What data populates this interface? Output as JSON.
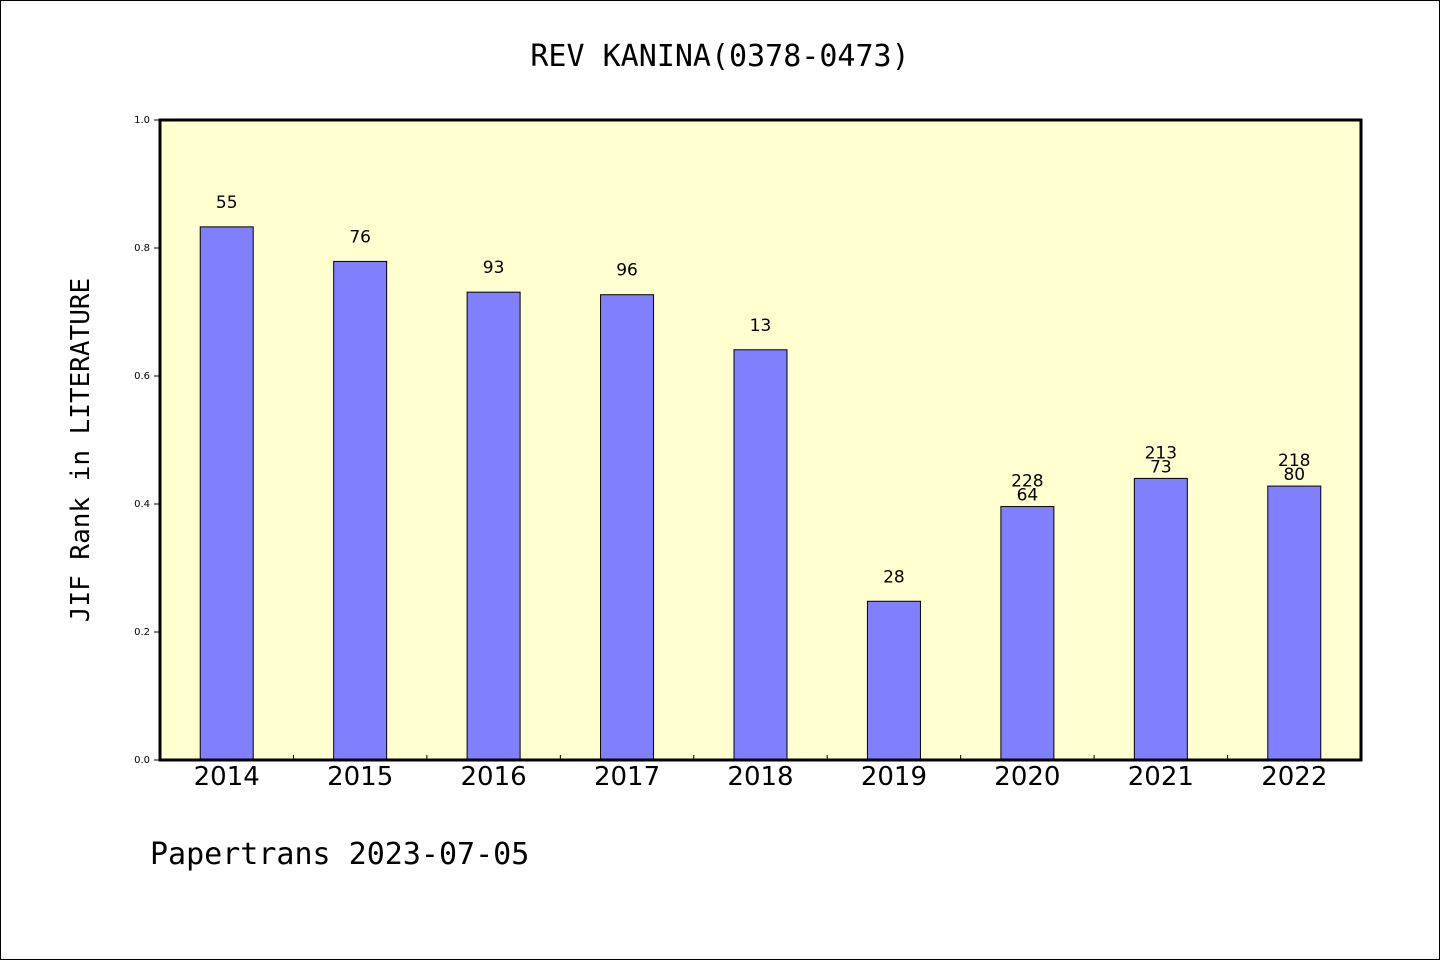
{
  "chart_data": {
    "type": "bar",
    "title": "REV KANINA(0378-0473)",
    "xlabel": "",
    "ylabel": "JIF Rank in LITERATURE",
    "ylim": [
      0,
      1.0
    ],
    "yticks": [
      "0.0",
      "0.2",
      "0.4",
      "0.6",
      "0.8",
      "1.0"
    ],
    "categories": [
      "2014",
      "2015",
      "2016",
      "2017",
      "2018",
      "2019",
      "2020",
      "2021",
      "2022"
    ],
    "values": [
      0.833,
      0.779,
      0.731,
      0.727,
      0.641,
      0.248,
      0.396,
      0.44,
      0.428
    ],
    "bar_labels": [
      [
        "55"
      ],
      [
        "76"
      ],
      [
        "93"
      ],
      [
        "96"
      ],
      [
        "13"
      ],
      [
        "28"
      ],
      [
        "228",
        "64"
      ],
      [
        "213",
        "73"
      ],
      [
        "218",
        "80"
      ]
    ],
    "bar_color": "#8080ff",
    "plot_background": "#ffffd0",
    "grid": false,
    "footer": "Papertrans 2023-07-05"
  }
}
